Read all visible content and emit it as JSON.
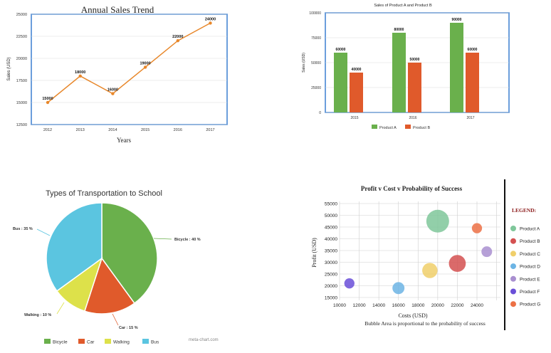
{
  "chart_data": [
    {
      "type": "line",
      "title": "Annual Sales Trend",
      "xlabel": "Years",
      "ylabel": "Sales (USD)",
      "categories": [
        "2012",
        "2013",
        "2014",
        "2015",
        "2016",
        "2017"
      ],
      "values": [
        15000,
        18000,
        16000,
        19000,
        22000,
        24000
      ],
      "data_labels": [
        "15000",
        "18000",
        "16000",
        "19000",
        "22000",
        "24000"
      ],
      "ylim": [
        12500,
        25000
      ],
      "yticks": [
        "12500",
        "15000",
        "17500",
        "20000",
        "22500",
        "25000"
      ],
      "grid": true,
      "color": "#e8872a"
    },
    {
      "type": "bar",
      "title": "Sales of Product A and Product B",
      "ylabel": "Sales (USD)",
      "categories": [
        "2015",
        "2016",
        "2017"
      ],
      "series": [
        {
          "name": "Product A",
          "values": [
            60000,
            80000,
            90000
          ],
          "labels": [
            "60000",
            "80000",
            "90000"
          ],
          "color": "#6ab04c"
        },
        {
          "name": "Product B",
          "values": [
            40000,
            50000,
            60000
          ],
          "labels": [
            "40000",
            "50000",
            "60000"
          ],
          "color": "#e05a2b"
        }
      ],
      "ylim": [
        0,
        100000
      ],
      "yticks": [
        "0",
        "25000",
        "50000",
        "75000",
        "100000"
      ],
      "legend": "bottom",
      "grid": true
    },
    {
      "type": "pie",
      "title": "Types of Transportation to School",
      "slices": [
        {
          "name": "Bicycle",
          "value": 40,
          "label": "Bicycle : 40 %",
          "color": "#6ab04c"
        },
        {
          "name": "Car",
          "value": 15,
          "label": "Car : 15 %",
          "color": "#e05a2b"
        },
        {
          "name": "Walking",
          "value": 10,
          "label": "Walking : 10 %",
          "color": "#dde14a"
        },
        {
          "name": "Bus",
          "value": 35,
          "label": "Bus : 35 %",
          "color": "#5bc5e0"
        }
      ],
      "legend": "bottom",
      "watermark": "meta-chart.com"
    },
    {
      "type": "scatter",
      "title": "Profit v Cost v Probability of Success",
      "xlabel": "Costs (USD)",
      "ylabel": "Profit (USD)",
      "note": "Bubble Area is proportional to the probability of success",
      "legend_title": "LEGEND:",
      "legend": "right",
      "xlim": [
        10000,
        26000
      ],
      "ylim": [
        15000,
        55000
      ],
      "xticks": [
        "10000",
        "12000",
        "14000",
        "16000",
        "18000",
        "20000",
        "22000",
        "24000"
      ],
      "yticks": [
        "15000",
        "20000",
        "25000",
        "30000",
        "35000",
        "40000",
        "45000",
        "50000",
        "55000"
      ],
      "grid": true,
      "points": [
        {
          "name": "Product A",
          "x": 20000,
          "y": 47500,
          "size": 1.0,
          "color": "#7fc79a"
        },
        {
          "name": "Product B",
          "x": 22000,
          "y": 29500,
          "size": 0.55,
          "color": "#d45050"
        },
        {
          "name": "Product C",
          "x": 19200,
          "y": 26500,
          "size": 0.45,
          "color": "#f0cf6a"
        },
        {
          "name": "Product D",
          "x": 16000,
          "y": 19000,
          "size": 0.28,
          "color": "#6cb4e4"
        },
        {
          "name": "Product E",
          "x": 25000,
          "y": 34500,
          "size": 0.22,
          "color": "#a98fd0"
        },
        {
          "name": "Product F",
          "x": 11000,
          "y": 21000,
          "size": 0.2,
          "color": "#6a4fd8"
        },
        {
          "name": "Product G",
          "x": 24000,
          "y": 44500,
          "size": 0.2,
          "color": "#ec7045"
        }
      ]
    }
  ]
}
